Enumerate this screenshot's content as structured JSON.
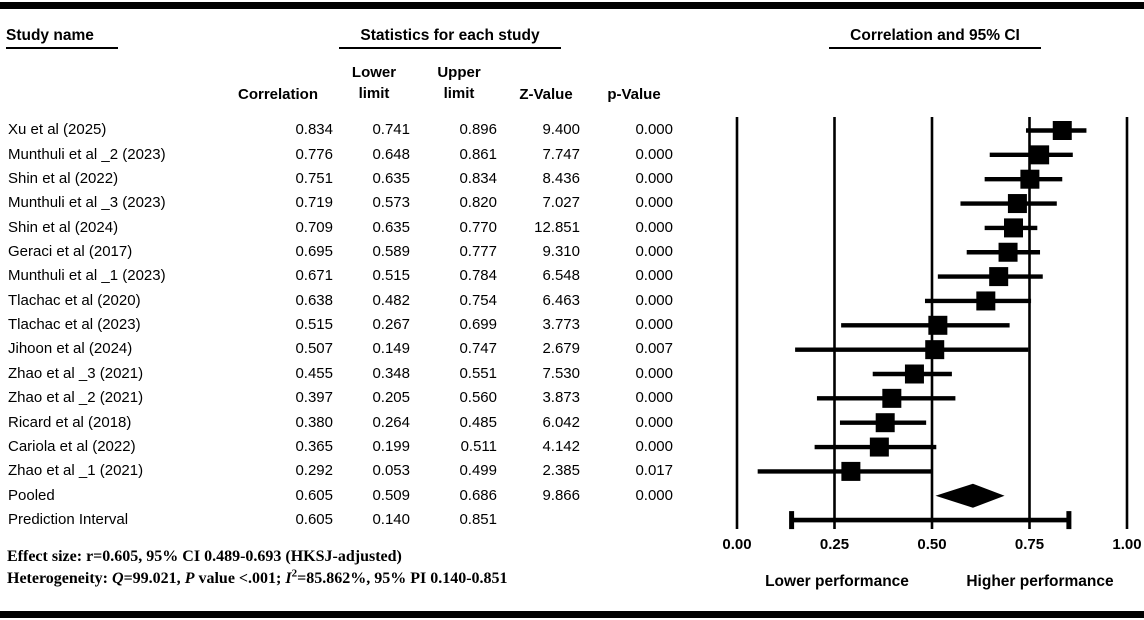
{
  "colors": {
    "ink": "#000000",
    "background": "#ffffff"
  },
  "table": {
    "header_study": "Study name",
    "header_statistics": "Statistics for each study",
    "columns": {
      "correlation": "Correlation",
      "lower": "Lower\nlimit",
      "upper": "Upper\nlimit",
      "z": "Z-Value",
      "p": "p-Value"
    }
  },
  "chart_data": {
    "type": "forest",
    "title": "Correlation and 95% CI",
    "xlim": [
      0,
      1
    ],
    "x_ticks": [
      "0.00",
      "0.25",
      "0.50",
      "0.75",
      "1.00"
    ],
    "xlabel_left": "Lower performance",
    "xlabel_right": "Higher performance",
    "studies": [
      {
        "name": "Xu et al (2025)",
        "correlation": "0.834",
        "lower": "0.741",
        "upper": "0.896",
        "z": "9.400",
        "p": "0.000",
        "marker": "square"
      },
      {
        "name": "Munthuli et al _2 (2023)",
        "correlation": "0.776",
        "lower": "0.648",
        "upper": "0.861",
        "z": "7.747",
        "p": "0.000",
        "marker": "square"
      },
      {
        "name": "Shin et al (2022)",
        "correlation": "0.751",
        "lower": "0.635",
        "upper": "0.834",
        "z": "8.436",
        "p": "0.000",
        "marker": "square"
      },
      {
        "name": "Munthuli et al _3 (2023)",
        "correlation": "0.719",
        "lower": "0.573",
        "upper": "0.820",
        "z": "7.027",
        "p": "0.000",
        "marker": "square"
      },
      {
        "name": "Shin et al (2024)",
        "correlation": "0.709",
        "lower": "0.635",
        "upper": "0.770",
        "z": "12.851",
        "p": "0.000",
        "marker": "square"
      },
      {
        "name": "Geraci et al (2017)",
        "correlation": "0.695",
        "lower": "0.589",
        "upper": "0.777",
        "z": "9.310",
        "p": "0.000",
        "marker": "square"
      },
      {
        "name": "Munthuli et al _1 (2023)",
        "correlation": "0.671",
        "lower": "0.515",
        "upper": "0.784",
        "z": "6.548",
        "p": "0.000",
        "marker": "square"
      },
      {
        "name": "Tlachac et al (2020)",
        "correlation": "0.638",
        "lower": "0.482",
        "upper": "0.754",
        "z": "6.463",
        "p": "0.000",
        "marker": "square"
      },
      {
        "name": "Tlachac et al (2023)",
        "correlation": "0.515",
        "lower": "0.267",
        "upper": "0.699",
        "z": "3.773",
        "p": "0.000",
        "marker": "square"
      },
      {
        "name": "Jihoon et al (2024)",
        "correlation": "0.507",
        "lower": "0.149",
        "upper": "0.747",
        "z": "2.679",
        "p": "0.007",
        "marker": "square"
      },
      {
        "name": "Zhao et al _3 (2021)",
        "correlation": "0.455",
        "lower": "0.348",
        "upper": "0.551",
        "z": "7.530",
        "p": "0.000",
        "marker": "square"
      },
      {
        "name": "Zhao et al _2 (2021)",
        "correlation": "0.397",
        "lower": "0.205",
        "upper": "0.560",
        "z": "3.873",
        "p": "0.000",
        "marker": "square"
      },
      {
        "name": "Ricard et al (2018)",
        "correlation": "0.380",
        "lower": "0.264",
        "upper": "0.485",
        "z": "6.042",
        "p": "0.000",
        "marker": "square"
      },
      {
        "name": "Cariola et al (2022)",
        "correlation": "0.365",
        "lower": "0.199",
        "upper": "0.511",
        "z": "4.142",
        "p": "0.000",
        "marker": "square"
      },
      {
        "name": "Zhao et al _1 (2021)",
        "correlation": "0.292",
        "lower": "0.053",
        "upper": "0.499",
        "z": "2.385",
        "p": "0.017",
        "marker": "square"
      },
      {
        "name": "Pooled",
        "correlation": "0.605",
        "lower": "0.509",
        "upper": "0.686",
        "z": "9.866",
        "p": "0.000",
        "marker": "diamond"
      },
      {
        "name": "Prediction Interval",
        "correlation": "0.605",
        "lower": "0.140",
        "upper": "0.851",
        "z": "",
        "p": "",
        "marker": "interval"
      }
    ]
  },
  "footer": {
    "line1": "Effect size: r=0.605, 95% CI 0.489-0.693 (HKSJ-adjusted)",
    "line2_prefix": "Heterogeneity: ",
    "line2_q_symbol": "Q",
    "line2_q_rest": "=99.021, ",
    "line2_p_symbol": "P",
    "line2_p_rest": " value <.001; ",
    "line2_i_symbol": "I",
    "line2_i_sup": "2",
    "line2_i_rest": "=85.862%, 95% PI 0.140-0.851"
  }
}
